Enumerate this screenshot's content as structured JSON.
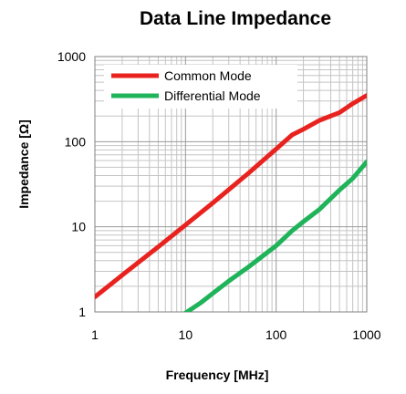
{
  "chart_data": {
    "type": "line",
    "title": "Data Line   Impedance",
    "xlabel": "Frequency [MHz]",
    "ylabel": "Impedance [Ω]",
    "xscale": "log",
    "yscale": "log",
    "xlim": [
      1,
      1000
    ],
    "ylim": [
      1,
      1000
    ],
    "xticks": [
      1,
      10,
      100,
      1000
    ],
    "xtick_labels": [
      "1",
      "10",
      "100",
      "1000"
    ],
    "yticks": [
      1,
      10,
      100,
      1000
    ],
    "ytick_labels": [
      "1",
      "10",
      "100",
      "1000"
    ],
    "grid": true,
    "legend_position": "top-left",
    "series": [
      {
        "name": "Common Mode",
        "color": "#e8231f",
        "x": [
          1,
          2,
          5,
          10,
          20,
          50,
          100,
          150,
          200,
          300,
          500,
          700,
          1000
        ],
        "y": [
          1.5,
          2.7,
          5.8,
          10.5,
          19,
          43,
          82,
          120,
          140,
          178,
          220,
          280,
          350
        ]
      },
      {
        "name": "Differential Mode",
        "color": "#1fb35a",
        "x": [
          10,
          15,
          20,
          30,
          50,
          100,
          150,
          200,
          300,
          500,
          700,
          1000
        ],
        "y": [
          0.97,
          1.3,
          1.65,
          2.3,
          3.4,
          6,
          9,
          11.5,
          16,
          27,
          37,
          58
        ]
      }
    ]
  }
}
